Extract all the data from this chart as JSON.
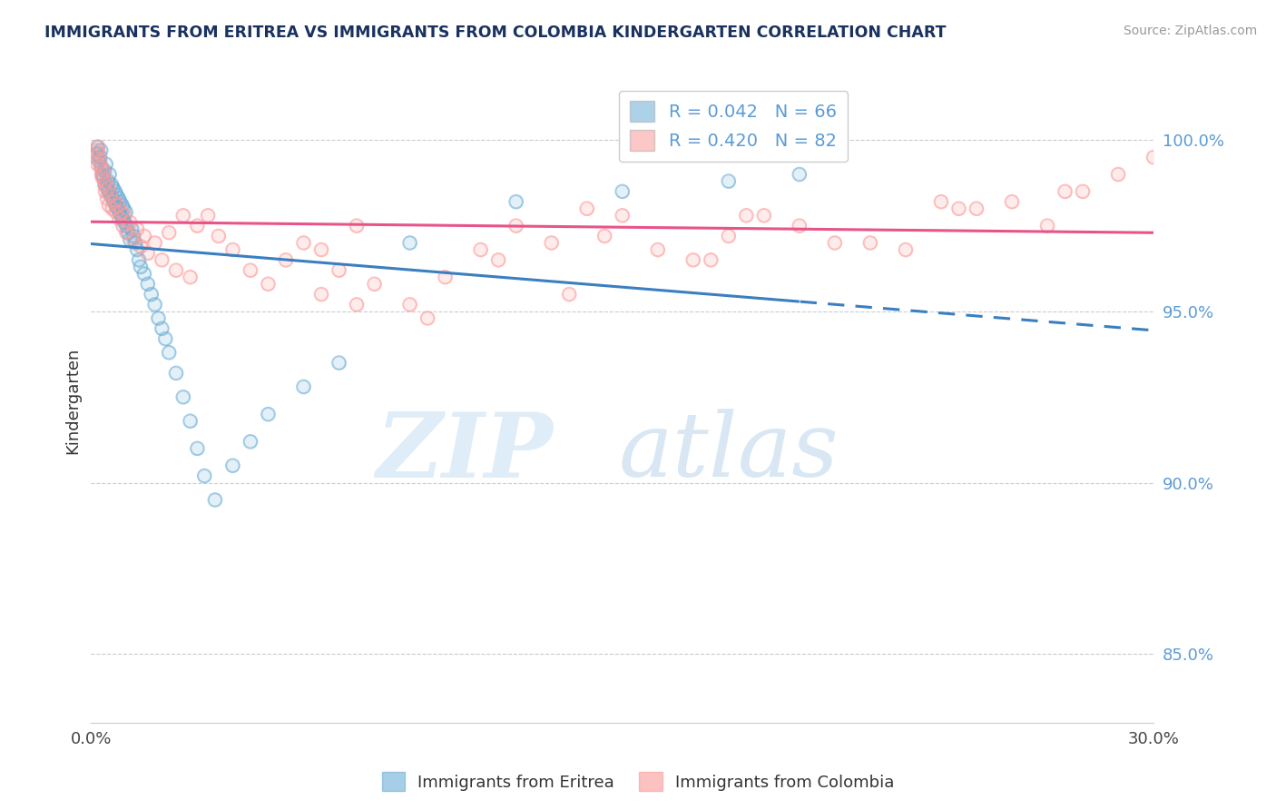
{
  "title": "IMMIGRANTS FROM ERITREA VS IMMIGRANTS FROM COLOMBIA KINDERGARTEN CORRELATION CHART",
  "source": "Source: ZipAtlas.com",
  "ylabel": "Kindergarten",
  "xlim": [
    0.0,
    30.0
  ],
  "ylim": [
    83.0,
    101.8
  ],
  "y_tick_vals": [
    85.0,
    90.0,
    95.0,
    100.0
  ],
  "legend_eritrea": "R = 0.042   N = 66",
  "legend_colombia": "R = 0.420   N = 82",
  "eritrea_color": "#6baed6",
  "colombia_color": "#fb9a99",
  "eritrea_line_color": "#3a7fc1",
  "colombia_line_color": "#e8538a",
  "background_color": "#ffffff",
  "eritrea_x": [
    0.15,
    0.18,
    0.22,
    0.25,
    0.28,
    0.3,
    0.32,
    0.35,
    0.38,
    0.4,
    0.42,
    0.45,
    0.48,
    0.5,
    0.52,
    0.55,
    0.58,
    0.6,
    0.62,
    0.65,
    0.68,
    0.7,
    0.72,
    0.75,
    0.78,
    0.8,
    0.82,
    0.85,
    0.88,
    0.9,
    0.92,
    0.95,
    0.98,
    1.0,
    1.05,
    1.1,
    1.15,
    1.2,
    1.25,
    1.3,
    1.35,
    1.4,
    1.5,
    1.6,
    1.7,
    1.8,
    1.9,
    2.0,
    2.1,
    2.2,
    2.4,
    2.6,
    2.8,
    3.0,
    3.2,
    3.5,
    4.0,
    4.5,
    5.0,
    6.0,
    7.0,
    9.0,
    12.0,
    15.0,
    18.0,
    20.0
  ],
  "eritrea_y": [
    99.6,
    99.8,
    99.4,
    99.5,
    99.7,
    99.2,
    99.0,
    98.9,
    99.1,
    98.7,
    99.3,
    98.6,
    98.8,
    98.5,
    99.0,
    98.4,
    98.7,
    98.3,
    98.6,
    98.2,
    98.5,
    98.1,
    98.4,
    98.0,
    98.3,
    97.9,
    98.2,
    97.8,
    98.1,
    97.7,
    98.0,
    97.6,
    97.9,
    97.5,
    97.3,
    97.1,
    97.4,
    97.2,
    97.0,
    96.8,
    96.5,
    96.3,
    96.1,
    95.8,
    95.5,
    95.2,
    94.8,
    94.5,
    94.2,
    93.8,
    93.2,
    92.5,
    91.8,
    91.0,
    90.2,
    89.5,
    90.5,
    91.2,
    92.0,
    92.8,
    93.5,
    97.0,
    98.2,
    98.5,
    98.8,
    99.0
  ],
  "colombia_x": [
    0.12,
    0.15,
    0.18,
    0.2,
    0.22,
    0.25,
    0.28,
    0.3,
    0.32,
    0.35,
    0.38,
    0.4,
    0.42,
    0.45,
    0.48,
    0.5,
    0.55,
    0.6,
    0.65,
    0.7,
    0.75,
    0.8,
    0.85,
    0.9,
    0.95,
    1.0,
    1.1,
    1.2,
    1.3,
    1.4,
    1.5,
    1.6,
    1.8,
    2.0,
    2.2,
    2.4,
    2.6,
    2.8,
    3.0,
    3.3,
    3.6,
    4.0,
    4.5,
    5.0,
    5.5,
    6.0,
    6.5,
    7.0,
    7.5,
    8.0,
    9.0,
    10.0,
    11.0,
    12.0,
    13.0,
    14.0,
    15.0,
    17.0,
    18.0,
    19.0,
    21.0,
    23.0,
    25.0,
    26.0,
    27.0,
    28.0,
    29.0,
    30.0,
    6.5,
    7.5,
    9.5,
    11.5,
    13.5,
    16.0,
    20.0,
    22.0,
    24.0,
    27.5,
    14.5,
    17.5,
    18.5,
    24.5
  ],
  "colombia_y": [
    99.5,
    99.7,
    99.3,
    99.8,
    99.6,
    99.4,
    99.2,
    99.0,
    98.9,
    99.1,
    98.7,
    98.5,
    98.8,
    98.3,
    98.6,
    98.1,
    98.4,
    98.0,
    98.2,
    97.9,
    98.1,
    97.7,
    97.9,
    97.5,
    97.8,
    97.3,
    97.6,
    97.1,
    97.4,
    96.9,
    97.2,
    96.7,
    97.0,
    96.5,
    97.3,
    96.2,
    97.8,
    96.0,
    97.5,
    97.8,
    97.2,
    96.8,
    96.2,
    95.8,
    96.5,
    97.0,
    96.8,
    96.2,
    97.5,
    95.8,
    95.2,
    96.0,
    96.8,
    97.5,
    97.0,
    98.0,
    97.8,
    96.5,
    97.2,
    97.8,
    97.0,
    96.8,
    98.0,
    98.2,
    97.5,
    98.5,
    99.0,
    99.5,
    95.5,
    95.2,
    94.8,
    96.5,
    95.5,
    96.8,
    97.5,
    97.0,
    98.2,
    98.5,
    97.2,
    96.5,
    97.8,
    98.0
  ]
}
